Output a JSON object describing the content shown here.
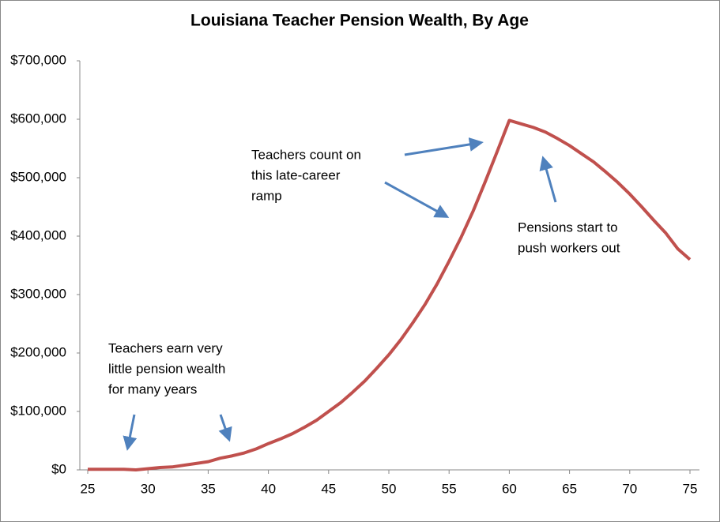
{
  "chart_data": {
    "type": "line",
    "title": "Louisiana Teacher Pension Wealth, By Age",
    "x": [
      25,
      26,
      27,
      28,
      29,
      30,
      31,
      32,
      33,
      34,
      35,
      36,
      37,
      38,
      39,
      40,
      41,
      42,
      43,
      44,
      45,
      46,
      47,
      48,
      49,
      50,
      51,
      52,
      53,
      54,
      55,
      56,
      57,
      58,
      59,
      60,
      61,
      62,
      63,
      64,
      65,
      66,
      67,
      68,
      69,
      70,
      71,
      72,
      73,
      74,
      75
    ],
    "values": [
      1000,
      1000,
      1000,
      1000,
      0,
      2000,
      4000,
      5000,
      8000,
      11000,
      14000,
      20000,
      24000,
      29000,
      36000,
      45000,
      53000,
      62000,
      73000,
      85000,
      100000,
      115000,
      133000,
      152000,
      174000,
      197000,
      223000,
      252000,
      283000,
      318000,
      357000,
      398000,
      443000,
      493000,
      545000,
      598000,
      592000,
      586000,
      578000,
      567000,
      555000,
      541000,
      527000,
      510000,
      492000,
      472000,
      450000,
      427000,
      405000,
      378000,
      360000
    ],
    "color": "#c0504d",
    "xlim": [
      25,
      75
    ],
    "xticks": [
      25,
      30,
      35,
      40,
      45,
      50,
      55,
      60,
      65,
      70,
      75
    ],
    "ylim": [
      0,
      700000
    ],
    "yticks": [
      {
        "value": 0,
        "label": "$0"
      },
      {
        "value": 100000,
        "label": "$100,000"
      },
      {
        "value": 200000,
        "label": "$200,000"
      },
      {
        "value": 300000,
        "label": "$300,000"
      },
      {
        "value": 400000,
        "label": "$400,000"
      },
      {
        "value": 500000,
        "label": "$500,000"
      },
      {
        "value": 600000,
        "label": "$600,000"
      },
      {
        "value": 700000,
        "label": "$700,000"
      }
    ],
    "annotations": [
      [
        "Teachers count on",
        "this late-career",
        "ramp"
      ],
      [
        "Pensions start to",
        "push workers out"
      ],
      [
        "Teachers earn very",
        "little pension wealth",
        "for many years"
      ]
    ]
  }
}
